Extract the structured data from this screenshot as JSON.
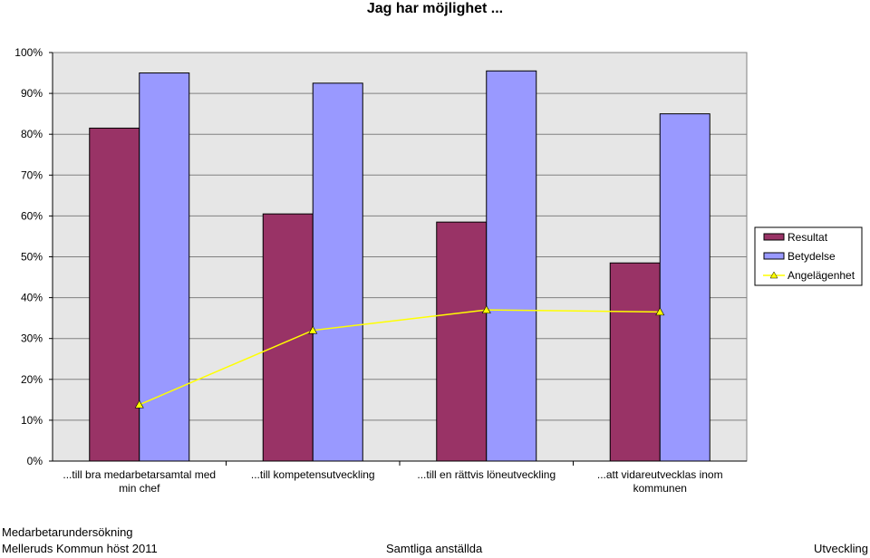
{
  "chart_data": {
    "type": "bar",
    "title": "Jag har möjlighet ...",
    "categories": [
      [
        "...till bra medarbetarsamtal med",
        "min chef"
      ],
      [
        "...till kompetensutveckling"
      ],
      [
        "...till en rättvis löneutveckling"
      ],
      [
        "...att vidareutvecklas inom",
        "kommunen"
      ]
    ],
    "series": [
      {
        "name": "Resultat",
        "kind": "bar",
        "color": "#993366",
        "values": [
          81.5,
          60.5,
          58.5,
          48.5
        ]
      },
      {
        "name": "Betydelse",
        "kind": "bar",
        "color": "#9999ff",
        "values": [
          95,
          92.5,
          95.5,
          85
        ]
      },
      {
        "name": "Angelägenhet",
        "kind": "line",
        "color": "#ffff00",
        "values": [
          13.8,
          32,
          37,
          36.5
        ]
      }
    ],
    "ylim": [
      0,
      100
    ],
    "yticks": [
      "0%",
      "10%",
      "20%",
      "30%",
      "40%",
      "50%",
      "60%",
      "70%",
      "80%",
      "90%",
      "100%"
    ],
    "grid": true,
    "plot_background": "#e6e6e6",
    "legend_position": "right"
  },
  "footer": {
    "line1": "Medarbetarundersökning",
    "line2": "Melleruds Kommun höst 2011",
    "center": "Samtliga anställda",
    "right": "Utveckling"
  }
}
